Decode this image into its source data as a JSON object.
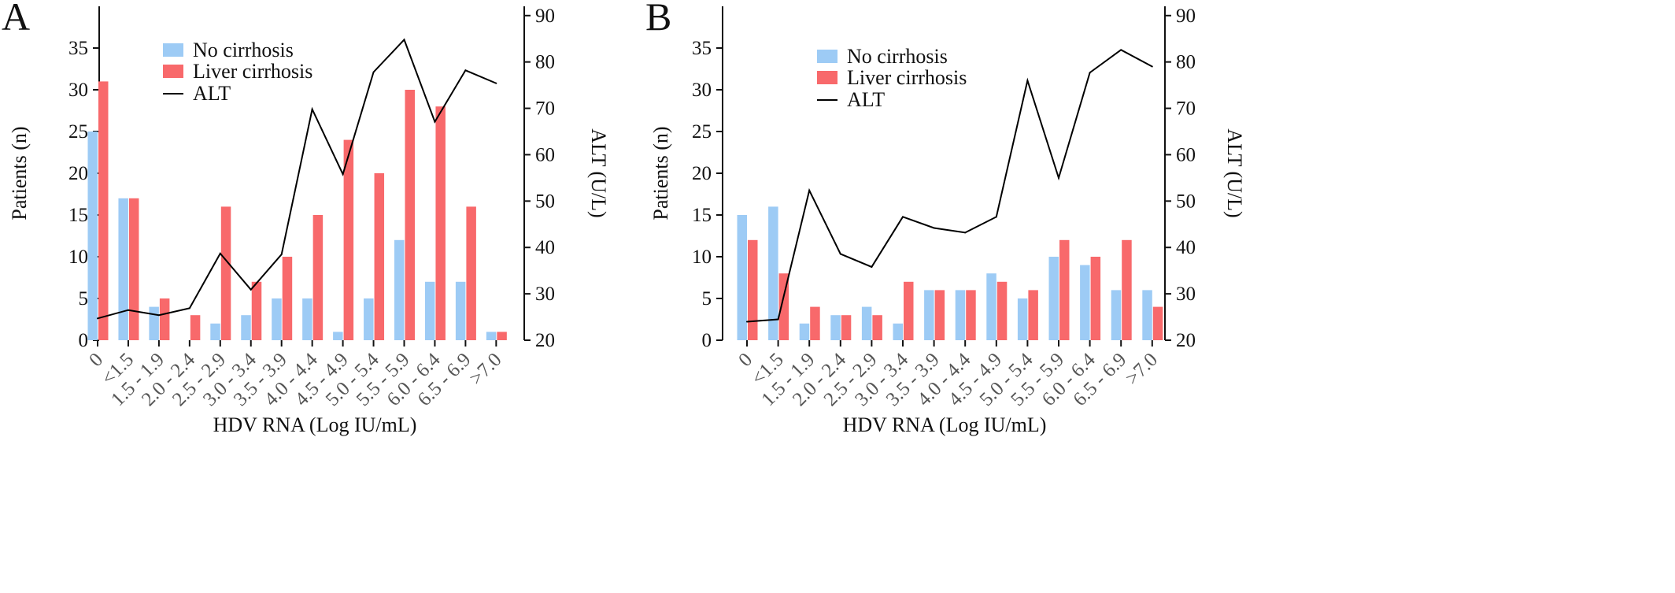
{
  "colors": {
    "no_cirrhosis": "#9dcbf5",
    "liver_cirrhosis": "#f8696b",
    "alt": "#000000"
  },
  "chart_data": [
    {
      "panel": "A",
      "type": "bar",
      "xlabel": "HDV RNA (Log IU/mL)",
      "ylabel": "Patients (n)",
      "y2label": "ALT (U/L)",
      "ylim": [
        0,
        40
      ],
      "y2lim": [
        20,
        92
      ],
      "yticks": [
        0,
        5,
        10,
        15,
        20,
        25,
        30,
        35
      ],
      "y2ticks": [
        20,
        30,
        40,
        50,
        60,
        70,
        80,
        90
      ],
      "categories": [
        "0",
        "<1.5",
        "1.5 - 1.9",
        "2.0 - 2.4",
        "2.5 - 2.9",
        "3.0 - 3.4",
        "3.5 - 3.9",
        "4.0 - 4.4",
        "4.5 - 4.9",
        "5.0 - 5.4",
        "5.5 - 5.9",
        "6.0 - 6.4",
        "6.5 - 6.9",
        ">7.0"
      ],
      "legend": [
        "No cirrhosis",
        "Liver cirrhosis",
        "ALT"
      ],
      "series": [
        {
          "name": "No cirrhosis",
          "values": [
            25,
            17,
            4,
            0,
            2,
            3,
            5,
            5,
            1,
            5,
            12,
            7,
            7,
            1
          ]
        },
        {
          "name": "Liver cirrhosis",
          "values": [
            31,
            17,
            5,
            3,
            16,
            7,
            10,
            15,
            24,
            20,
            30,
            28,
            16,
            1
          ]
        },
        {
          "name": "ALT",
          "axis": "right",
          "type": "line",
          "values": [
            24.7,
            26.5,
            25.4,
            26.9,
            38.7,
            30.9,
            38.5,
            69.8,
            55.8,
            77.8,
            84.8,
            67.1,
            78.2,
            75.4
          ]
        }
      ]
    },
    {
      "panel": "B",
      "type": "bar",
      "xlabel": "HDV RNA (Log IU/mL)",
      "ylabel": "Patients (n)",
      "y2label": "ALT (U/L)",
      "ylim": [
        0,
        40
      ],
      "y2lim": [
        20,
        92
      ],
      "yticks": [
        0,
        5,
        10,
        15,
        20,
        25,
        30,
        35
      ],
      "y2ticks": [
        20,
        30,
        40,
        50,
        60,
        70,
        80,
        90
      ],
      "categories": [
        "0",
        "<1.5",
        "1.5 - 1.9",
        "2.0 - 2.4",
        "2.5 - 2.9",
        "3.0 - 3.4",
        "3.5 - 3.9",
        "4.0 - 4.4",
        "4.5 - 4.9",
        "5.0 - 5.4",
        "5.5 - 5.9",
        "6.0 - 6.4",
        "6.5 - 6.9",
        ">7.0"
      ],
      "legend": [
        "No cirrhosis",
        "Liver cirrhosis",
        "ALT"
      ],
      "series": [
        {
          "name": "No cirrhosis",
          "values": [
            15,
            16,
            2,
            3,
            4,
            2,
            6,
            6,
            8,
            5,
            10,
            9,
            6,
            6
          ]
        },
        {
          "name": "Liver cirrhosis",
          "values": [
            12,
            8,
            4,
            3,
            3,
            7,
            6,
            6,
            7,
            6,
            12,
            10,
            12,
            4
          ]
        },
        {
          "name": "ALT",
          "axis": "right",
          "type": "line",
          "values": [
            24.0,
            24.5,
            52.3,
            38.6,
            35.8,
            46.6,
            44.2,
            43.2,
            46.6,
            76.0,
            55.0,
            77.7,
            82.6,
            79.0
          ]
        }
      ]
    }
  ]
}
